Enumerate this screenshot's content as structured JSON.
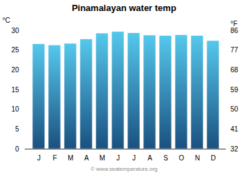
{
  "chart_data": {
    "type": "bar",
    "title": "Pinamalayan water temp",
    "categories": [
      "J",
      "F",
      "M",
      "A",
      "M",
      "J",
      "J",
      "A",
      "S",
      "O",
      "N",
      "D"
    ],
    "values": [
      26.6,
      26.3,
      26.7,
      27.8,
      29.3,
      29.7,
      29.4,
      28.8,
      28.7,
      28.9,
      28.7,
      27.4
    ],
    "color": [
      "#1a5080",
      "#55c8ec"
    ],
    "ylabel": "°C",
    "ylim": [
      0,
      30
    ],
    "yticks": [
      0,
      5,
      10,
      15,
      20,
      25,
      30
    ],
    "y2label": "°F",
    "y2lim": [
      32,
      86
    ],
    "y2ticks": [
      32,
      41,
      50,
      59,
      68,
      77,
      86
    ],
    "grid": false,
    "annotations": [
      "© www.seatemperature.org"
    ]
  }
}
